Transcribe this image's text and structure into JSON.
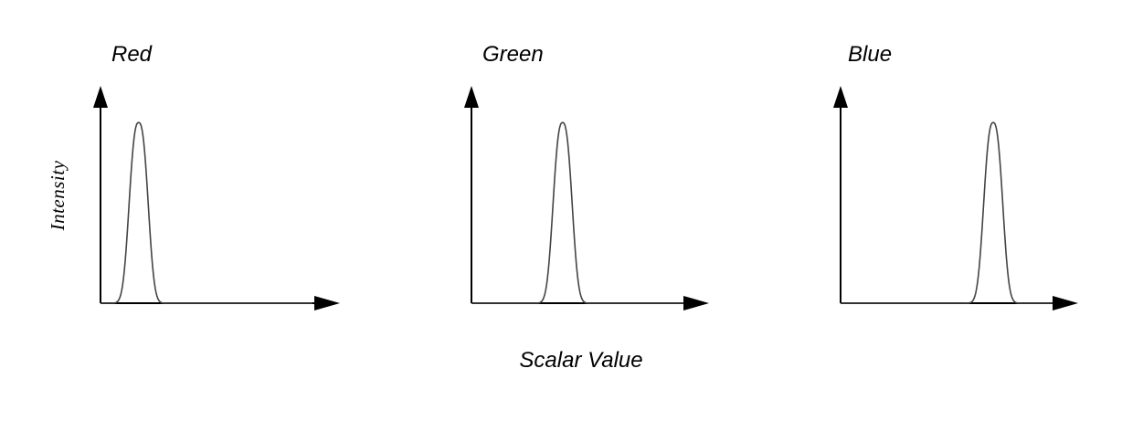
{
  "chart_data": [
    {
      "type": "line",
      "title": "Red",
      "xlabel": "Scalar Value",
      "ylabel": "Intensity",
      "peak_center": 0.18,
      "peak_width": 0.055,
      "xlim": [
        0,
        1
      ],
      "ylim": [
        0,
        1
      ]
    },
    {
      "type": "line",
      "title": "Green",
      "xlabel": "Scalar Value",
      "ylabel": "Intensity",
      "peak_center": 0.43,
      "peak_width": 0.055,
      "xlim": [
        0,
        1
      ],
      "ylim": [
        0,
        1
      ]
    },
    {
      "type": "line",
      "title": "Blue",
      "xlabel": "Scalar Value",
      "ylabel": "Intensity",
      "peak_center": 0.72,
      "peak_width": 0.055,
      "xlim": [
        0,
        1
      ],
      "ylim": [
        0,
        1
      ]
    }
  ],
  "labels": {
    "ylabel": "Intensity",
    "xlabel": "Scalar Value"
  }
}
